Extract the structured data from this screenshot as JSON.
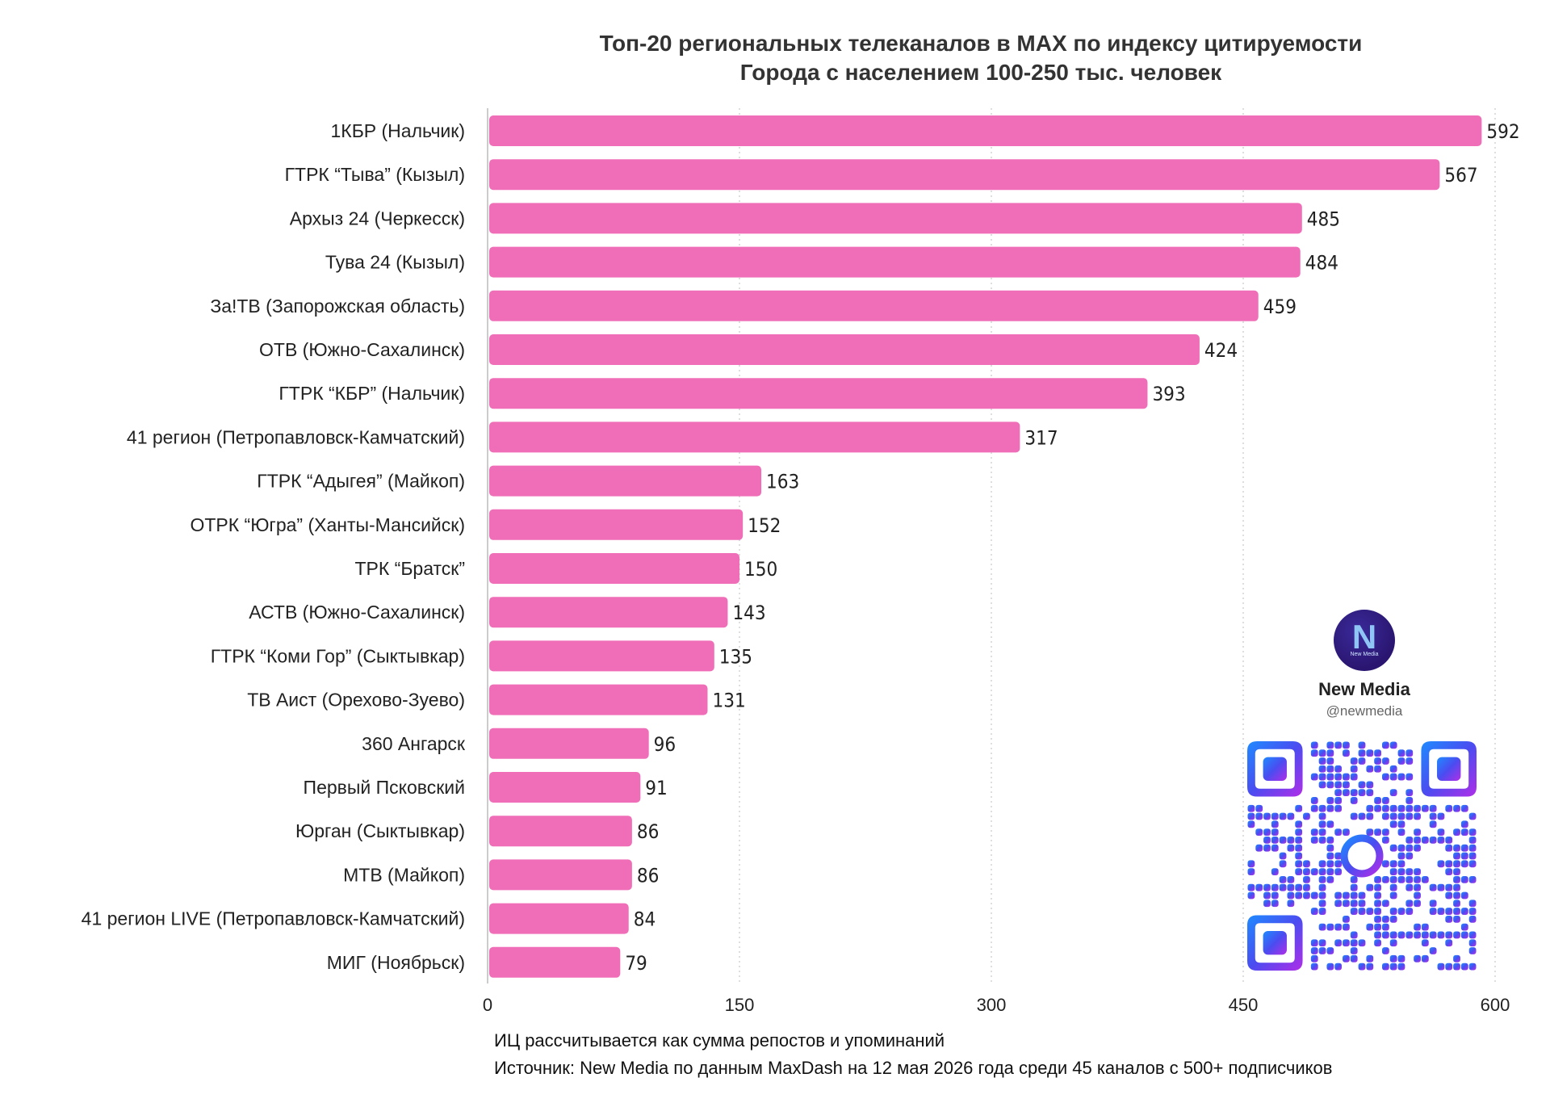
{
  "chart_data": {
    "type": "bar",
    "orientation": "horizontal",
    "title": [
      "Топ-20 региональных телеканалов в MAX по индексу цитируемости",
      "Города с населением 100-250 тыс. человек"
    ],
    "categories": [
      "1КБР (Нальчик)",
      "ГТРК “Тыва” (Кызыл)",
      "Архыз 24 (Черкесск)",
      "Тува 24 (Кызыл)",
      "За!ТВ (Запорожская область)",
      "ОТВ (Южно-Сахалинск)",
      "ГТРК “КБР” (Нальчик)",
      "41 регион (Петропавловск-Камчатский)",
      "ГТРК “Адыгея” (Майкоп)",
      "ОТРК “Югра” (Ханты-Мансийск)",
      "ТРК “Братск”",
      "АСТВ (Южно-Сахалинск)",
      "ГТРК “Коми Гор” (Сыктывкар)",
      "ТВ Аист (Орехово-Зуево)",
      "360 Ангарск",
      "Первый Псковский",
      "Юрган (Сыктывкар)",
      "МТВ (Майкоп)",
      "41 регион LIVE (Петропавловск-Камчатский)",
      "МИГ (Ноябрьск)"
    ],
    "values": [
      592,
      567,
      485,
      484,
      459,
      424,
      393,
      317,
      163,
      152,
      150,
      143,
      135,
      131,
      96,
      91,
      86,
      86,
      84,
      79
    ],
    "xlim": [
      0,
      600
    ],
    "xticks": [
      "0",
      "150",
      "300",
      "450",
      "600"
    ],
    "grid": "vertical dotted",
    "bar_color": "#f06eb8"
  },
  "footnotes": [
    "ИЦ рассчитывается как сумма репостов и упоминаний",
    "Источник: New Media по данным MaxDash на 12 мая 2026 года среди 45 каналов с 500+ подписчиков"
  ],
  "brand": {
    "name": "New Media",
    "handle": "@newmedia",
    "logo_glyph": "N",
    "logo_small": "New Media",
    "logo_icon": "new-media-logo-icon",
    "qr_icon": "qr-code-icon"
  }
}
